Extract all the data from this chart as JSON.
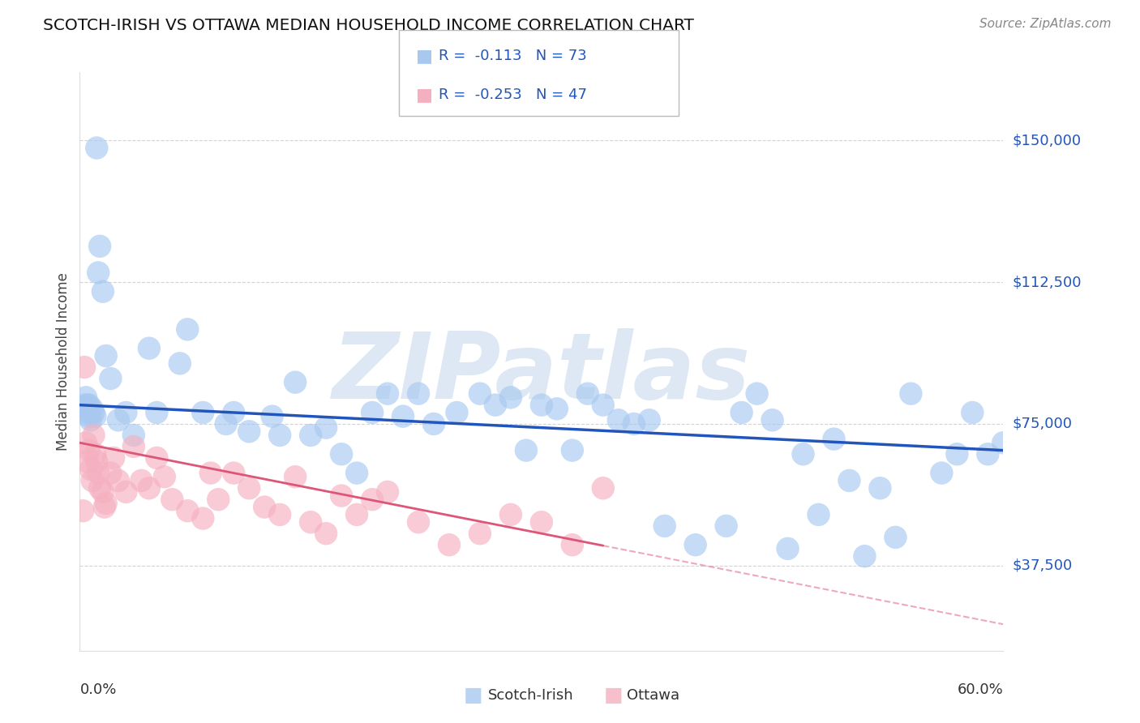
{
  "title": "SCOTCH-IRISH VS OTTAWA MEDIAN HOUSEHOLD INCOME CORRELATION CHART",
  "source": "Source: ZipAtlas.com",
  "ylabel": "Median Household Income",
  "x_min": 0.0,
  "x_max": 60.0,
  "y_min": 15000,
  "y_max": 168000,
  "y_ticks": [
    37500,
    75000,
    112500,
    150000
  ],
  "y_tick_labels": [
    "$37,500",
    "$75,000",
    "$112,500",
    "$150,000"
  ],
  "blue_label": "Scotch-Irish",
  "pink_label": "Ottawa",
  "blue_R": -0.113,
  "blue_N": 73,
  "pink_R": -0.253,
  "pink_N": 47,
  "blue_color": "#a8c8f0",
  "pink_color": "#f5b0c0",
  "blue_edge_color": "#7aaee8",
  "pink_edge_color": "#f080a0",
  "blue_line_color": "#2255bb",
  "pink_line_color": "#dd5577",
  "watermark_color": "#dde8f4",
  "background_color": "#ffffff",
  "grid_color": "#c8c8c8",
  "blue_intercept": 80000,
  "blue_slope": -200,
  "pink_intercept": 70000,
  "pink_slope": -800,
  "pink_dash_start": 34.0,
  "blue_scatter_x": [
    0.3,
    0.4,
    0.4,
    0.5,
    0.5,
    0.6,
    0.6,
    0.7,
    0.8,
    0.9,
    1.0,
    1.1,
    1.2,
    1.3,
    1.5,
    1.7,
    2.0,
    2.5,
    3.0,
    3.5,
    4.5,
    5.0,
    6.5,
    7.0,
    8.0,
    9.5,
    10.0,
    11.0,
    12.5,
    13.0,
    14.0,
    15.0,
    16.0,
    17.0,
    18.0,
    19.0,
    20.0,
    21.0,
    22.0,
    23.0,
    24.5,
    26.0,
    27.0,
    28.0,
    29.0,
    30.0,
    31.0,
    32.0,
    33.0,
    34.0,
    35.0,
    36.0,
    37.0,
    38.0,
    40.0,
    42.0,
    43.0,
    44.0,
    45.0,
    46.0,
    47.0,
    48.0,
    49.0,
    50.0,
    51.0,
    52.0,
    54.0,
    56.0,
    57.0,
    58.0,
    59.0,
    60.0,
    53.0
  ],
  "blue_scatter_y": [
    80000,
    79000,
    82000,
    78000,
    80000,
    77000,
    80000,
    76000,
    79000,
    78000,
    77000,
    148000,
    115000,
    122000,
    110000,
    93000,
    87000,
    76000,
    78000,
    72000,
    95000,
    78000,
    91000,
    100000,
    78000,
    75000,
    78000,
    73000,
    77000,
    72000,
    86000,
    72000,
    74000,
    67000,
    62000,
    78000,
    83000,
    77000,
    83000,
    75000,
    78000,
    83000,
    80000,
    82000,
    68000,
    80000,
    79000,
    68000,
    83000,
    80000,
    76000,
    75000,
    76000,
    48000,
    43000,
    48000,
    78000,
    83000,
    76000,
    42000,
    67000,
    51000,
    71000,
    60000,
    40000,
    58000,
    83000,
    62000,
    67000,
    78000,
    67000,
    70000,
    45000
  ],
  "pink_scatter_x": [
    0.2,
    0.3,
    0.4,
    0.5,
    0.6,
    0.7,
    0.8,
    0.9,
    1.0,
    1.1,
    1.2,
    1.3,
    1.5,
    1.6,
    1.7,
    2.0,
    2.2,
    2.5,
    3.0,
    3.5,
    4.0,
    4.5,
    5.0,
    5.5,
    6.0,
    7.0,
    8.0,
    8.5,
    9.0,
    10.0,
    11.0,
    12.0,
    13.0,
    14.0,
    15.0,
    16.0,
    17.0,
    18.0,
    19.0,
    20.0,
    22.0,
    24.0,
    26.0,
    28.0,
    30.0,
    32.0,
    34.0
  ],
  "pink_scatter_y": [
    52000,
    90000,
    70000,
    65000,
    68000,
    63000,
    60000,
    72000,
    67000,
    65000,
    62000,
    58000,
    57000,
    53000,
    54000,
    62000,
    66000,
    60000,
    57000,
    69000,
    60000,
    58000,
    66000,
    61000,
    55000,
    52000,
    50000,
    62000,
    55000,
    62000,
    58000,
    53000,
    51000,
    61000,
    49000,
    46000,
    56000,
    51000,
    55000,
    57000,
    49000,
    43000,
    46000,
    51000,
    49000,
    43000,
    58000
  ]
}
